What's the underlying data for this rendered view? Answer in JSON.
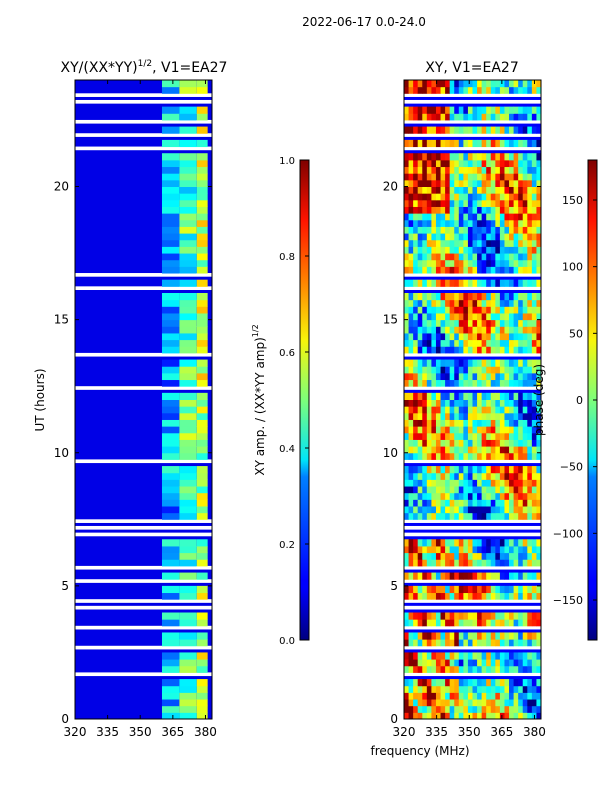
{
  "figure": {
    "title": "2022-06-17 0.0-24.0",
    "xlabel": "frequency (MHz)"
  },
  "chart_data": [
    {
      "type": "heatmap",
      "title": "XY/(XX*YY)",
      "title_exponent": "1/2",
      "title_suffix": ", V1=EA27",
      "xlabel": "",
      "ylabel": "UT (hours)",
      "xlim": [
        320,
        383
      ],
      "ylim": [
        0,
        24
      ],
      "xticks": [
        320,
        335,
        350,
        365,
        380
      ],
      "yticks": [
        0,
        5,
        10,
        15,
        20
      ],
      "colorbar": {
        "label": "XY amp. / (XX*YY amp)",
        "label_exponent": "1/2",
        "range": [
          0.0,
          1.0
        ],
        "ticks": [
          "0.0",
          "0.2",
          "0.4",
          "0.6",
          "0.8",
          "1.0"
        ],
        "tick_values": [
          0.0,
          0.2,
          0.4,
          0.6,
          0.8,
          1.0
        ],
        "colormap": "jet"
      },
      "description_values": {
        "background_level": 0.05,
        "band_levels": [
          0.3,
          0.45,
          0.55
        ],
        "band_freq_ranges_mhz": [
          [
            360,
            368
          ],
          [
            368,
            376
          ],
          [
            376,
            381
          ]
        ]
      }
    },
    {
      "type": "heatmap",
      "title": "XY, V1=EA27",
      "xlabel": "frequency (MHz)",
      "ylabel": "",
      "xlim": [
        320,
        383
      ],
      "ylim": [
        0,
        24
      ],
      "xticks": [
        320,
        335,
        350,
        365,
        380
      ],
      "yticks": [
        0,
        5,
        10,
        15,
        20
      ],
      "colorbar": {
        "label": "phase (deg)",
        "range": [
          -180,
          180
        ],
        "ticks": [
          "−150",
          "−100",
          "−50",
          "0",
          "50",
          "100",
          "150"
        ],
        "tick_values": [
          -150,
          -100,
          -50,
          0,
          50,
          100,
          150
        ],
        "colormap": "jet"
      }
    }
  ]
}
